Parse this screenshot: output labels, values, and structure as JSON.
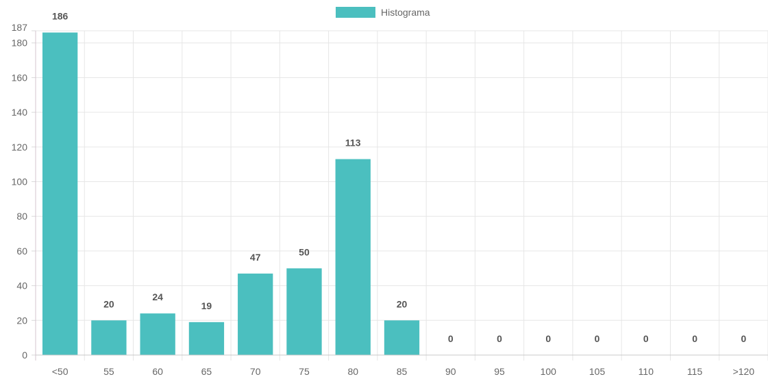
{
  "chart_data": {
    "type": "bar",
    "categories": [
      "<50",
      "55",
      "60",
      "65",
      "70",
      "75",
      "80",
      "85",
      "90",
      "95",
      "100",
      "105",
      "110",
      "115",
      ">120"
    ],
    "series": [
      {
        "name": "Histograma",
        "values": [
          186,
          20,
          24,
          19,
          47,
          50,
          113,
          20,
          0,
          0,
          0,
          0,
          0,
          0,
          0
        ],
        "color": "#4bbfbf"
      }
    ],
    "ylim": [
      0,
      187
    ],
    "yticks": [
      0,
      20,
      40,
      60,
      80,
      100,
      120,
      140,
      160,
      180,
      187
    ],
    "grid": true,
    "legend_position": "top-center",
    "data_labels": true
  }
}
